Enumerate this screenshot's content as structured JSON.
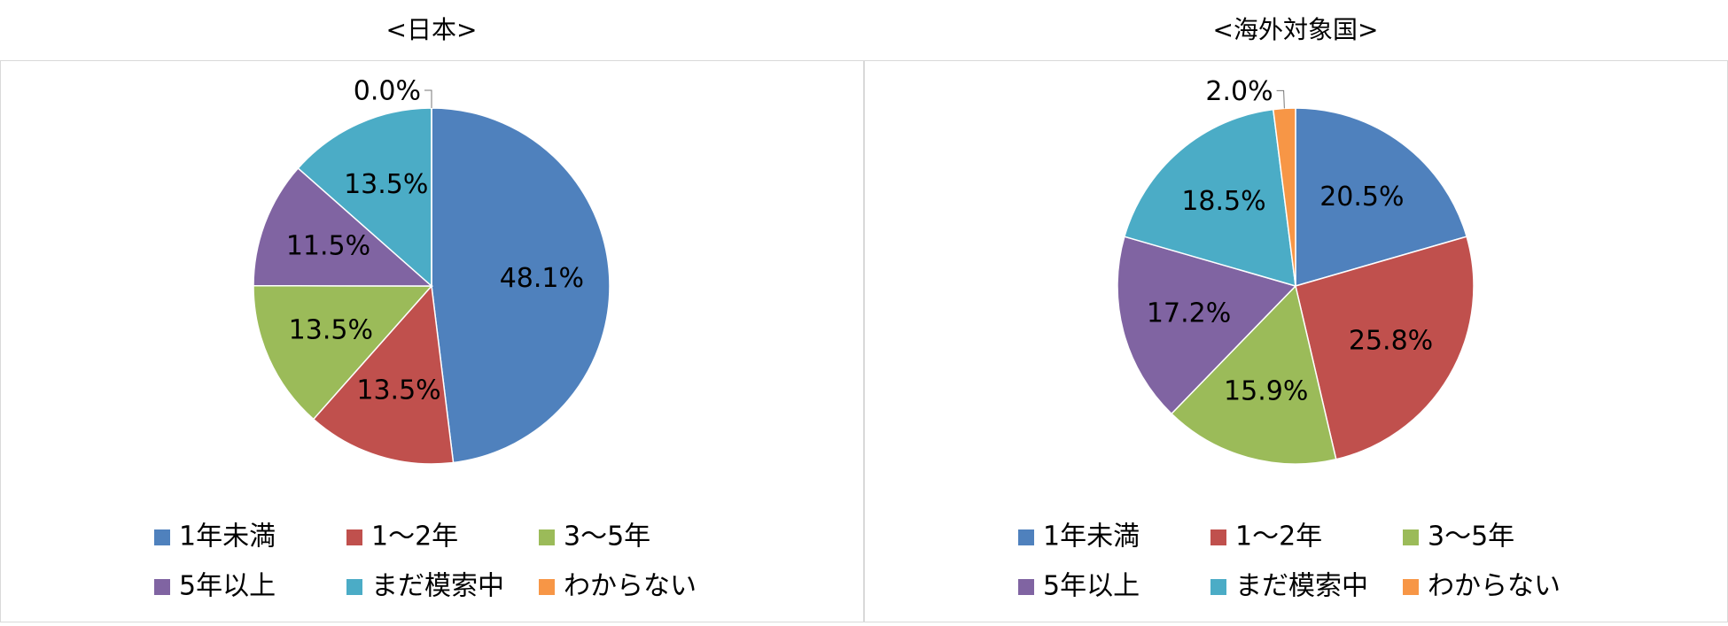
{
  "chart_data": [
    {
      "type": "pie",
      "title": "<日本>",
      "categories": [
        "1年未満",
        "1～2年",
        "3～5年",
        "5年以上",
        "まだ模索中",
        "わからない"
      ],
      "values": [
        48.1,
        13.5,
        13.5,
        11.5,
        13.5,
        0.0
      ],
      "value_labels": [
        "48.1%",
        "13.5%",
        "13.5%",
        "11.5%",
        "13.5%",
        "0.0%"
      ],
      "colors": [
        "#4f81bd",
        "#c0504d",
        "#9bbb59",
        "#8064a2",
        "#4bacc6",
        "#f79646"
      ]
    },
    {
      "type": "pie",
      "title": "<海外対象国>",
      "categories": [
        "1年未満",
        "1～2年",
        "3～5年",
        "5年以上",
        "まだ模索中",
        "わからない"
      ],
      "values": [
        20.5,
        25.8,
        15.9,
        17.2,
        18.5,
        2.0
      ],
      "value_labels": [
        "20.5%",
        "25.8%",
        "15.9%",
        "17.2%",
        "18.5%",
        "2.0%"
      ],
      "colors": [
        "#4f81bd",
        "#c0504d",
        "#9bbb59",
        "#8064a2",
        "#4bacc6",
        "#f79646"
      ]
    }
  ]
}
